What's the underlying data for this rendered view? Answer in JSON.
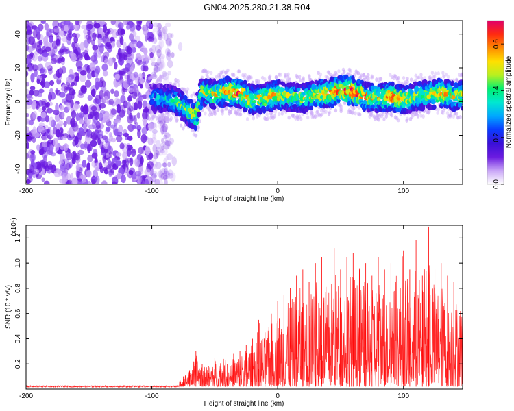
{
  "title": "GN04.2025.280.21.38.R04",
  "colors": {
    "signal": "#ff0000",
    "scatter_background": "#7a2ee0",
    "colormap": [
      "#ffffff",
      "#c9a6f7",
      "#6a1be0",
      "#3a10d8",
      "#0a3cff",
      "#00a8ff",
      "#00e8d0",
      "#00f070",
      "#b8f020",
      "#ffe000",
      "#ff8a00",
      "#ff2a10",
      "#e0006a"
    ]
  },
  "chart_data": [
    {
      "type": "heatmap",
      "xlabel": "Height of straight line (km)",
      "ylabel": "Frequency (Hz)",
      "xlim": [
        -200,
        147
      ],
      "ylim": [
        -49,
        48
      ],
      "x_ticks": [
        -200,
        -100,
        0,
        100
      ],
      "y_ticks": [
        -40,
        -20,
        0,
        20,
        40
      ],
      "colorbar": {
        "label": "Normalized spectral amplitude",
        "range": [
          0,
          0.7
        ],
        "ticks": [
          0.0,
          0.2,
          0.4,
          0.6
        ]
      },
      "ridge": {
        "description_x": [
          -100,
          -90,
          -80,
          -70,
          -65,
          -60,
          -50,
          -40,
          -30,
          -20,
          -10,
          0,
          10,
          20,
          30,
          40,
          50,
          60,
          70,
          80,
          90,
          100,
          110,
          120,
          130,
          140,
          147
        ],
        "center_hz": [
          2,
          2,
          0,
          -6,
          -9,
          6,
          4,
          6,
          5,
          1,
          2,
          4,
          3,
          2,
          4,
          5,
          7,
          6,
          3,
          2,
          3,
          1,
          3,
          4,
          5,
          3,
          4
        ],
        "peak_amplitude": [
          0.3,
          0.35,
          0.4,
          0.45,
          0.5,
          0.45,
          0.5,
          0.55,
          0.6,
          0.5,
          0.5,
          0.55,
          0.45,
          0.45,
          0.5,
          0.55,
          0.6,
          0.65,
          0.55,
          0.5,
          0.6,
          0.5,
          0.45,
          0.45,
          0.55,
          0.5,
          0.45
        ]
      },
      "noise_region_x": [
        -200,
        -85
      ],
      "noise_amplitude": 0.05
    },
    {
      "type": "line",
      "xlabel": "Height of straight line (km)",
      "ylabel": "SNR (10 * v/v)",
      "y_multiplier": "(x10⁴)",
      "xlim": [
        -200,
        147
      ],
      "ylim": [
        0,
        1.3
      ],
      "x_ticks": [
        -200,
        -100,
        0,
        100
      ],
      "y_ticks": [
        0.2,
        0.4,
        0.6,
        0.8,
        1.0,
        1.2
      ],
      "series": [
        {
          "x": [
            -200,
            -150,
            -100,
            -80,
            -75,
            -70,
            -65,
            -60,
            -55,
            -50,
            -45,
            -40,
            -35,
            -30,
            -25,
            -20,
            -15,
            -10,
            -5,
            0,
            5,
            10,
            15,
            20,
            25,
            30,
            35,
            40,
            45,
            50,
            55,
            60,
            65,
            70,
            75,
            80,
            85,
            90,
            95,
            100,
            105,
            110,
            115,
            120,
            125,
            130,
            135,
            140,
            147
          ],
          "values": [
            0.02,
            0.02,
            0.02,
            0.03,
            0.1,
            0.15,
            0.3,
            0.2,
            0.18,
            0.25,
            0.3,
            0.2,
            0.28,
            0.3,
            0.35,
            0.4,
            0.55,
            0.45,
            0.6,
            0.7,
            0.75,
            0.8,
            0.9,
            0.95,
            0.85,
            1.0,
            1.05,
            0.9,
            1.12,
            0.95,
            1.05,
            1.08,
            0.95,
            1.0,
            0.9,
            1.05,
            0.95,
            1.0,
            0.9,
            1.1,
            0.95,
            1.18,
            0.9,
            1.29,
            0.95,
            1.0,
            0.9,
            0.85,
            0.8
          ]
        }
      ]
    }
  ]
}
